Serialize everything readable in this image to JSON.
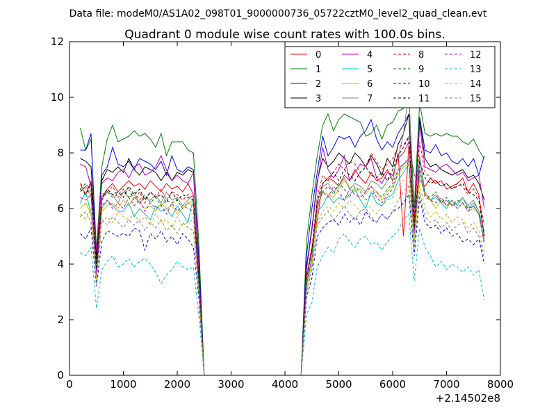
{
  "chart_data": {
    "type": "line",
    "suptitle": "Data file: modeM0/AS1A02_098T01_9000000736_05722cztM0_level2_quad_clean.evt",
    "title": "Quadrant 0 module wise count rates with 100.0s bins.",
    "xlabel": "",
    "ylabel": "",
    "x_offset_label": "+2.14502e8",
    "xlim": [
      0,
      8000
    ],
    "ylim": [
      0,
      12
    ],
    "xticks": [
      0,
      1000,
      2000,
      3000,
      4000,
      5000,
      6000,
      7000,
      8000
    ],
    "yticks": [
      0,
      2,
      4,
      6,
      8,
      10,
      12
    ],
    "grid": false,
    "legend_position": "top-right",
    "legend_columns": 4,
    "x": [
      200,
      300,
      400,
      500,
      600,
      700,
      800,
      900,
      1000,
      1100,
      1200,
      1300,
      1400,
      1500,
      1600,
      1700,
      1800,
      1900,
      2000,
      2100,
      2200,
      2300,
      2400,
      2500,
      2600,
      2700,
      2800,
      2900,
      3000,
      3100,
      3200,
      3300,
      3400,
      3500,
      3600,
      3700,
      3800,
      3900,
      4000,
      4100,
      4200,
      4300,
      4400,
      4500,
      4600,
      4700,
      4800,
      4900,
      5000,
      5100,
      5200,
      5300,
      5400,
      5500,
      5600,
      5700,
      5800,
      5900,
      6000,
      6100,
      6200,
      6300,
      6400,
      6500,
      6600,
      6700,
      6800,
      6900,
      7000,
      7100,
      7200,
      7300,
      7400,
      7500,
      7600,
      7700
    ],
    "series": [
      {
        "name": "0",
        "color": "#ff0000",
        "dash": false,
        "gap_level": 3.5,
        "head": [
          6.9,
          6.5,
          7.0,
          4.3,
          6.4,
          6.7,
          6.9,
          6.6,
          6.8,
          7.0,
          6.8,
          6.9,
          6.7,
          7.0,
          6.8,
          6.6,
          6.9,
          6.7,
          6.8,
          6.6,
          6.9,
          6.5
        ],
        "tail": [
          4.6,
          5.6,
          6.9,
          7.1,
          7.0,
          6.8,
          7.2,
          7.0,
          7.4,
          7.1,
          6.9,
          7.3,
          7.0,
          7.1,
          7.4,
          7.0,
          8.0,
          5.0,
          8.3,
          7.2,
          7.0,
          6.8,
          7.1,
          6.9,
          7.0,
          6.7,
          6.8,
          6.9,
          7.1,
          6.6,
          6.9,
          6.5,
          5.0
        ]
      },
      {
        "name": "1",
        "color": "#008000",
        "dash": false,
        "gap_level": 4.8,
        "head": [
          8.9,
          8.1,
          8.5,
          4.5,
          7.5,
          8.5,
          9.0,
          8.4,
          8.5,
          8.6,
          8.8,
          8.6,
          8.7,
          8.5,
          8.2,
          8.7,
          7.9,
          8.4,
          8.4,
          8.4,
          8.1,
          8.0
        ],
        "tail": [
          6.5,
          7.9,
          9.0,
          9.4,
          8.8,
          9.2,
          9.4,
          9.3,
          9.2,
          9.1,
          8.6,
          8.7,
          9.0,
          8.5,
          9.0,
          9.1,
          9.5,
          9.6,
          10.1,
          6.0,
          9.8,
          8.7,
          8.6,
          8.7,
          8.6,
          8.7,
          8.6,
          8.6,
          8.4,
          8.3,
          8.5,
          8.1,
          7.8
        ]
      },
      {
        "name": "2",
        "color": "#0000ff",
        "dash": false,
        "gap_level": 4.3,
        "head": [
          8.1,
          8.1,
          8.7,
          4.0,
          7.2,
          7.5,
          8.2,
          7.6,
          7.5,
          7.7,
          7.4,
          7.8,
          7.7,
          7.6,
          7.4,
          7.7,
          7.2,
          7.9,
          7.4,
          7.3,
          7.5,
          7.4
        ],
        "tail": [
          6.0,
          7.3,
          8.6,
          7.9,
          8.2,
          8.6,
          8.5,
          8.6,
          8.2,
          8.6,
          8.8,
          9.2,
          8.5,
          8.1,
          8.4,
          8.2,
          8.7,
          9.0,
          9.4,
          5.5,
          9.3,
          8.1,
          8.0,
          8.3,
          7.9,
          8.0,
          7.7,
          7.6,
          7.8,
          7.5,
          7.8,
          7.2,
          7.9
        ]
      },
      {
        "name": "3",
        "color": "#000000",
        "dash": false,
        "gap_level": 3.9,
        "head": [
          7.8,
          7.7,
          7.5,
          4.2,
          7.0,
          7.4,
          7.3,
          7.5,
          7.3,
          7.8,
          7.4,
          7.2,
          7.5,
          7.4,
          7.3,
          7.0,
          7.3,
          7.0,
          7.3,
          7.2,
          7.4,
          7.3
        ],
        "tail": [
          5.3,
          7.0,
          7.8,
          7.5,
          7.7,
          8.0,
          7.8,
          7.6,
          8.0,
          7.8,
          7.5,
          7.9,
          7.6,
          7.2,
          7.8,
          7.5,
          8.3,
          8.7,
          9.4,
          5.5,
          9.2,
          7.8,
          7.5,
          7.6,
          7.4,
          7.3,
          7.2,
          7.3,
          7.4,
          7.1,
          7.2,
          6.9,
          6.3
        ]
      },
      {
        "name": "4",
        "color": "#bf00bf",
        "dash": false,
        "gap_level": 3.8,
        "head": [
          7.6,
          7.5,
          6.8,
          4.5,
          6.9,
          7.1,
          7.0,
          7.3,
          7.4,
          7.1,
          7.5,
          7.6,
          7.2,
          7.3,
          7.5,
          7.9,
          7.4,
          7.0,
          7.2,
          7.0,
          6.9,
          7.3
        ],
        "tail": [
          5.2,
          6.9,
          8.2,
          7.4,
          7.1,
          7.4,
          7.9,
          7.0,
          7.3,
          7.6,
          7.5,
          7.8,
          7.1,
          6.9,
          7.3,
          7.2,
          7.8,
          8.0,
          8.4,
          5.4,
          9.0,
          7.5,
          7.4,
          7.3,
          7.5,
          7.6,
          7.4,
          7.2,
          7.3,
          7.0,
          7.1,
          7.2,
          6.0
        ]
      },
      {
        "name": "5",
        "color": "#00bfbf",
        "dash": false,
        "gap_level": 3.2,
        "head": [
          6.2,
          6.6,
          5.8,
          3.8,
          6.0,
          6.3,
          6.1,
          5.9,
          5.9,
          6.2,
          5.7,
          6.0,
          5.8,
          5.6,
          6.1,
          5.9,
          6.0,
          5.7,
          6.1,
          5.8,
          5.5,
          6.4
        ],
        "tail": [
          4.2,
          5.9,
          6.1,
          6.5,
          6.2,
          6.4,
          6.3,
          6.5,
          6.7,
          6.3,
          6.0,
          6.6,
          6.2,
          6.1,
          6.4,
          6.5,
          7.0,
          7.3,
          7.6,
          4.8,
          7.8,
          6.5,
          6.3,
          6.4,
          6.2,
          6.0,
          6.3,
          6.1,
          6.4,
          6.0,
          6.2,
          5.9,
          5.2
        ]
      },
      {
        "name": "6",
        "color": "#bfbf00",
        "dash": false,
        "gap_level": 3.2,
        "head": [
          6.0,
          6.2,
          5.8,
          3.7,
          5.9,
          6.1,
          6.2,
          6.0,
          6.3,
          6.1,
          6.4,
          6.2,
          6.0,
          6.1,
          5.9,
          6.2,
          6.0,
          6.1,
          5.8,
          6.0,
          6.2,
          6.3
        ],
        "tail": [
          4.0,
          6.0,
          6.6,
          6.5,
          6.4,
          6.7,
          7.0,
          6.8,
          6.6,
          6.7,
          6.5,
          6.8,
          6.6,
          6.3,
          6.6,
          6.8,
          7.2,
          7.5,
          7.6,
          4.9,
          7.2,
          6.5,
          6.3,
          6.0,
          6.3,
          6.1,
          6.2,
          6.0,
          6.2,
          5.9,
          6.0,
          5.8,
          4.8
        ]
      },
      {
        "name": "7",
        "color": "#808080",
        "dash": false,
        "gap_level": 3.5,
        "head": [
          6.6,
          6.8,
          6.5,
          3.6,
          6.4,
          6.6,
          6.5,
          6.2,
          6.6,
          6.4,
          6.5,
          6.2,
          6.4,
          6.3,
          6.5,
          6.2,
          6.6,
          6.3,
          6.4,
          6.1,
          6.3,
          6.5
        ],
        "tail": [
          4.5,
          6.2,
          6.8,
          6.9,
          6.6,
          6.8,
          7.1,
          6.7,
          6.9,
          6.8,
          6.6,
          7.0,
          6.9,
          6.7,
          7.0,
          7.2,
          7.8,
          8.7,
          10.2,
          5.2,
          7.9,
          6.6,
          6.3,
          6.5,
          6.2,
          6.3,
          6.1,
          6.2,
          6.4,
          6.1,
          6.3,
          5.9,
          4.8
        ]
      },
      {
        "name": "8",
        "color": "#ff0000",
        "dash": true,
        "gap_level": 3.6,
        "head": [
          6.9,
          6.7,
          6.5,
          4.0,
          6.5,
          6.6,
          6.8,
          6.4,
          6.6,
          6.7,
          6.3,
          6.6,
          6.2,
          6.6,
          6.4,
          6.7,
          6.3,
          6.6,
          6.5,
          6.3,
          6.5,
          6.4
        ],
        "tail": [
          4.6,
          6.4,
          7.2,
          7.0,
          7.3,
          7.6,
          7.4,
          7.7,
          7.6,
          7.3,
          7.5,
          8.0,
          7.7,
          7.4,
          7.6,
          7.8,
          8.2,
          8.3,
          8.5,
          5.6,
          8.4,
          7.3,
          7.1,
          7.0,
          6.8,
          6.9,
          6.7,
          6.9,
          6.8,
          6.5,
          6.7,
          6.4,
          5.4
        ]
      },
      {
        "name": "9",
        "color": "#008000",
        "dash": true,
        "gap_level": 3.4,
        "head": [
          6.7,
          6.9,
          6.6,
          3.9,
          6.3,
          6.6,
          6.4,
          6.5,
          6.7,
          6.4,
          6.6,
          6.3,
          6.5,
          6.2,
          6.4,
          6.1,
          6.3,
          6.2,
          6.3,
          6.0,
          6.2,
          6.1
        ],
        "tail": [
          4.4,
          6.1,
          6.6,
          6.8,
          6.5,
          6.9,
          6.7,
          6.4,
          6.8,
          6.6,
          6.3,
          6.5,
          6.6,
          6.4,
          6.7,
          6.9,
          7.4,
          7.6,
          7.7,
          5.2,
          7.4,
          6.5,
          6.4,
          6.6,
          6.2,
          6.4,
          6.1,
          6.3,
          6.2,
          6.0,
          6.1,
          5.8,
          4.9
        ]
      },
      {
        "name": "10",
        "color": "#0000ff",
        "dash": true,
        "gap_level": 2.8,
        "head": [
          5.1,
          4.9,
          5.3,
          3.2,
          4.8,
          5.2,
          5.1,
          5.0,
          5.1,
          5.0,
          5.3,
          5.2,
          4.5,
          5.1,
          4.9,
          5.2,
          4.8,
          5.0,
          4.7,
          5.1,
          4.9,
          4.6
        ],
        "tail": [
          3.5,
          5.0,
          5.3,
          5.5,
          5.6,
          5.4,
          5.8,
          5.5,
          5.7,
          5.4,
          5.9,
          5.6,
          5.5,
          5.8,
          5.6,
          5.9,
          6.0,
          6.2,
          6.5,
          4.3,
          6.4,
          5.5,
          5.3,
          5.4,
          5.1,
          5.3,
          5.0,
          5.1,
          4.8,
          4.9,
          4.7,
          4.9,
          4.0
        ]
      },
      {
        "name": "11",
        "color": "#000000",
        "dash": true,
        "gap_level": 3.5,
        "head": [
          6.7,
          6.5,
          6.9,
          3.8,
          6.3,
          6.7,
          6.5,
          6.6,
          6.4,
          6.8,
          6.5,
          6.7,
          6.3,
          6.6,
          6.4,
          6.5,
          6.2,
          6.6,
          6.3,
          6.5,
          6.4,
          6.3
        ],
        "tail": [
          4.5,
          6.3,
          6.9,
          7.1,
          7.3,
          7.0,
          7.4,
          7.2,
          7.0,
          7.3,
          7.5,
          7.2,
          7.1,
          7.3,
          7.0,
          7.4,
          7.9,
          8.2,
          8.6,
          5.3,
          7.7,
          7.1,
          6.9,
          7.0,
          6.8,
          6.9,
          6.7,
          6.8,
          6.9,
          6.6,
          6.5,
          6.3,
          5.0
        ]
      },
      {
        "name": "12",
        "color": "#bf00bf",
        "dash": true,
        "gap_level": 3.3,
        "head": [
          6.4,
          6.3,
          6.5,
          3.6,
          6.1,
          6.3,
          6.0,
          6.2,
          6.0,
          6.4,
          6.1,
          6.3,
          5.9,
          6.2,
          6.0,
          6.1,
          5.8,
          6.2,
          5.9,
          6.1,
          6.0,
          5.9
        ],
        "tail": [
          4.2,
          6.1,
          6.6,
          6.4,
          6.8,
          6.6,
          6.3,
          6.7,
          6.5,
          6.4,
          6.6,
          6.8,
          6.4,
          6.2,
          6.5,
          6.7,
          7.3,
          7.6,
          7.8,
          5.1,
          7.5,
          6.4,
          6.3,
          6.2,
          6.4,
          6.1,
          6.3,
          6.0,
          6.2,
          5.9,
          6.1,
          5.8,
          4.7
        ]
      },
      {
        "name": "13",
        "color": "#00bfbf",
        "dash": true,
        "gap_level": 2.2,
        "head": [
          4.4,
          4.3,
          4.6,
          2.4,
          3.8,
          4.1,
          4.3,
          3.9,
          4.0,
          4.2,
          3.9,
          4.1,
          4.2,
          4.0,
          3.7,
          3.3,
          3.6,
          3.8,
          4.1,
          3.9,
          3.8,
          3.9
        ],
        "tail": [
          2.6,
          3.9,
          4.3,
          4.6,
          4.4,
          4.9,
          5.1,
          4.8,
          4.6,
          4.9,
          5.0,
          4.7,
          4.8,
          4.5,
          4.8,
          5.0,
          5.2,
          5.6,
          5.8,
          3.4,
          5.3,
          4.6,
          4.3,
          3.9,
          4.1,
          3.8,
          4.0,
          3.9,
          3.7,
          3.9,
          3.6,
          3.8,
          2.7
        ]
      },
      {
        "name": "14",
        "color": "#bfbf00",
        "dash": true,
        "gap_level": 3.0,
        "head": [
          5.8,
          5.6,
          6.0,
          3.4,
          5.5,
          5.7,
          5.5,
          5.9,
          5.7,
          5.6,
          5.8,
          5.5,
          5.7,
          5.4,
          5.8,
          5.5,
          5.6,
          5.3,
          5.7,
          5.4,
          5.5,
          5.6
        ],
        "tail": [
          3.9,
          5.5,
          5.9,
          6.1,
          5.9,
          6.2,
          6.0,
          6.3,
          6.1,
          5.9,
          6.2,
          6.0,
          5.8,
          6.1,
          6.3,
          6.4,
          6.8,
          7.0,
          7.2,
          4.6,
          6.9,
          6.0,
          5.7,
          5.9,
          5.6,
          5.8,
          5.5,
          5.7,
          5.6,
          5.3,
          5.5,
          5.2,
          4.4
        ]
      },
      {
        "name": "15",
        "color": "#808080",
        "dash": true,
        "gap_level": 3.0,
        "head": [
          5.7,
          5.9,
          5.5,
          3.3,
          5.6,
          5.4,
          5.7,
          5.5,
          5.3,
          5.6,
          5.4,
          5.6,
          5.2,
          5.5,
          5.3,
          5.6,
          5.2,
          5.4,
          5.1,
          5.5,
          5.3,
          5.2
        ],
        "tail": [
          3.8,
          5.4,
          5.7,
          5.9,
          5.6,
          5.8,
          6.1,
          5.8,
          5.6,
          5.9,
          6.0,
          5.7,
          5.5,
          5.8,
          5.6,
          5.9,
          6.3,
          6.6,
          6.8,
          4.5,
          6.6,
          5.7,
          5.5,
          5.6,
          5.3,
          5.5,
          5.2,
          5.4,
          5.5,
          5.1,
          5.3,
          5.0,
          4.2
        ]
      }
    ]
  }
}
